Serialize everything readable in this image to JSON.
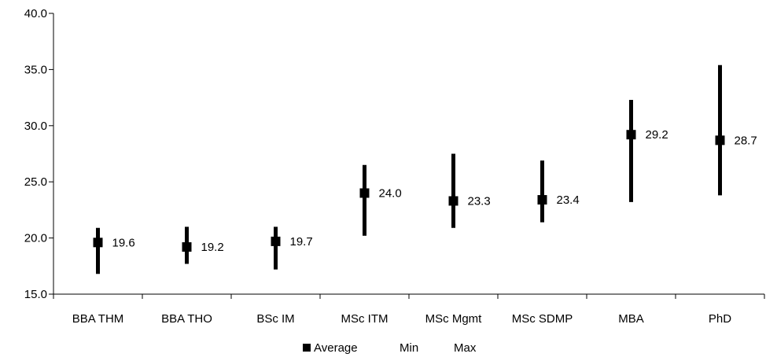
{
  "chart_data": {
    "type": "scatter",
    "categories": [
      "BBA THM",
      "BBA THO",
      "BSc IM",
      "MSc ITM",
      "MSc Mgmt",
      "MSc SDMP",
      "MBA",
      "PhD"
    ],
    "series": [
      {
        "name": "Average",
        "values": [
          19.6,
          19.2,
          19.7,
          24.0,
          23.3,
          23.4,
          29.2,
          28.7
        ]
      },
      {
        "name": "Min",
        "values": [
          16.8,
          17.7,
          17.2,
          20.2,
          20.9,
          21.4,
          23.2,
          23.8
        ]
      },
      {
        "name": "Max",
        "values": [
          20.9,
          21.0,
          21.0,
          26.5,
          27.5,
          26.9,
          32.3,
          35.4
        ]
      }
    ],
    "data_labels": [
      "19.6",
      "19.2",
      "19.7",
      "24.0",
      "23.3",
      "23.4",
      "29.2",
      "28.7"
    ],
    "y_ticks": [
      "15.0",
      "20.0",
      "25.0",
      "30.0",
      "35.0",
      "40.0"
    ],
    "ylim": [
      15,
      40
    ],
    "grid": false,
    "legend": {
      "position": "bottom",
      "labels": [
        "Average",
        "Min",
        "Max"
      ]
    },
    "colors": {
      "marker": "#000000",
      "axis": "#000000"
    }
  }
}
